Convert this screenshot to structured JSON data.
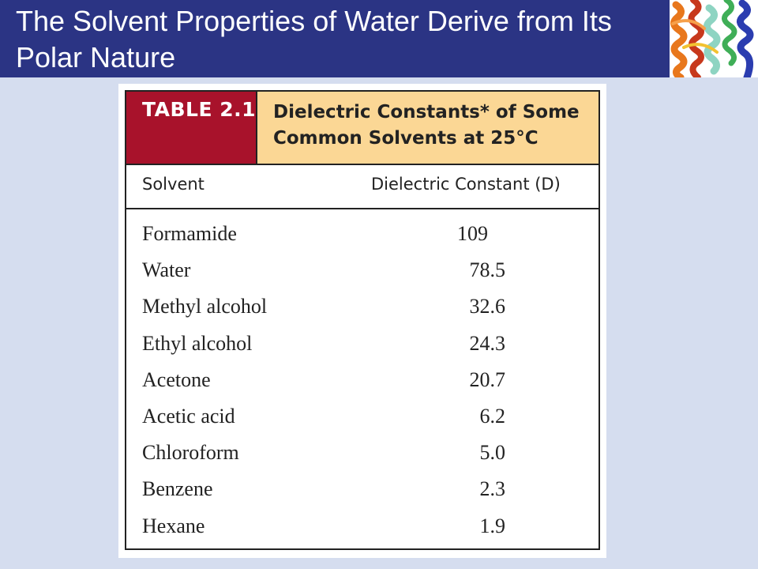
{
  "slide": {
    "title": "The Solvent Properties of Water Derive from Its Polar Nature"
  },
  "table": {
    "number": "TABLE 2.1",
    "caption": "Dielectric Constants* of Some Common Solvents at 25°C",
    "columns": {
      "solvent": "Solvent",
      "value": "Dielectric Constant (D)"
    },
    "rows": [
      {
        "solvent": "Formamide",
        "value": "109"
      },
      {
        "solvent": "Water",
        "value": "78.5"
      },
      {
        "solvent": "Methyl alcohol",
        "value": "32.6"
      },
      {
        "solvent": "Ethyl alcohol",
        "value": "24.3"
      },
      {
        "solvent": "Acetone",
        "value": "20.7"
      },
      {
        "solvent": "Acetic acid",
        "value": "6.2"
      },
      {
        "solvent": "Chloroform",
        "value": "5.0"
      },
      {
        "solvent": "Benzene",
        "value": "2.3"
      },
      {
        "solvent": "Hexane",
        "value": "1.9"
      }
    ]
  },
  "colors": {
    "title_bar": "#2b3484",
    "background": "#d5ddef",
    "table_number_bg": "#a8122b",
    "caption_bg": "#fbd795"
  }
}
